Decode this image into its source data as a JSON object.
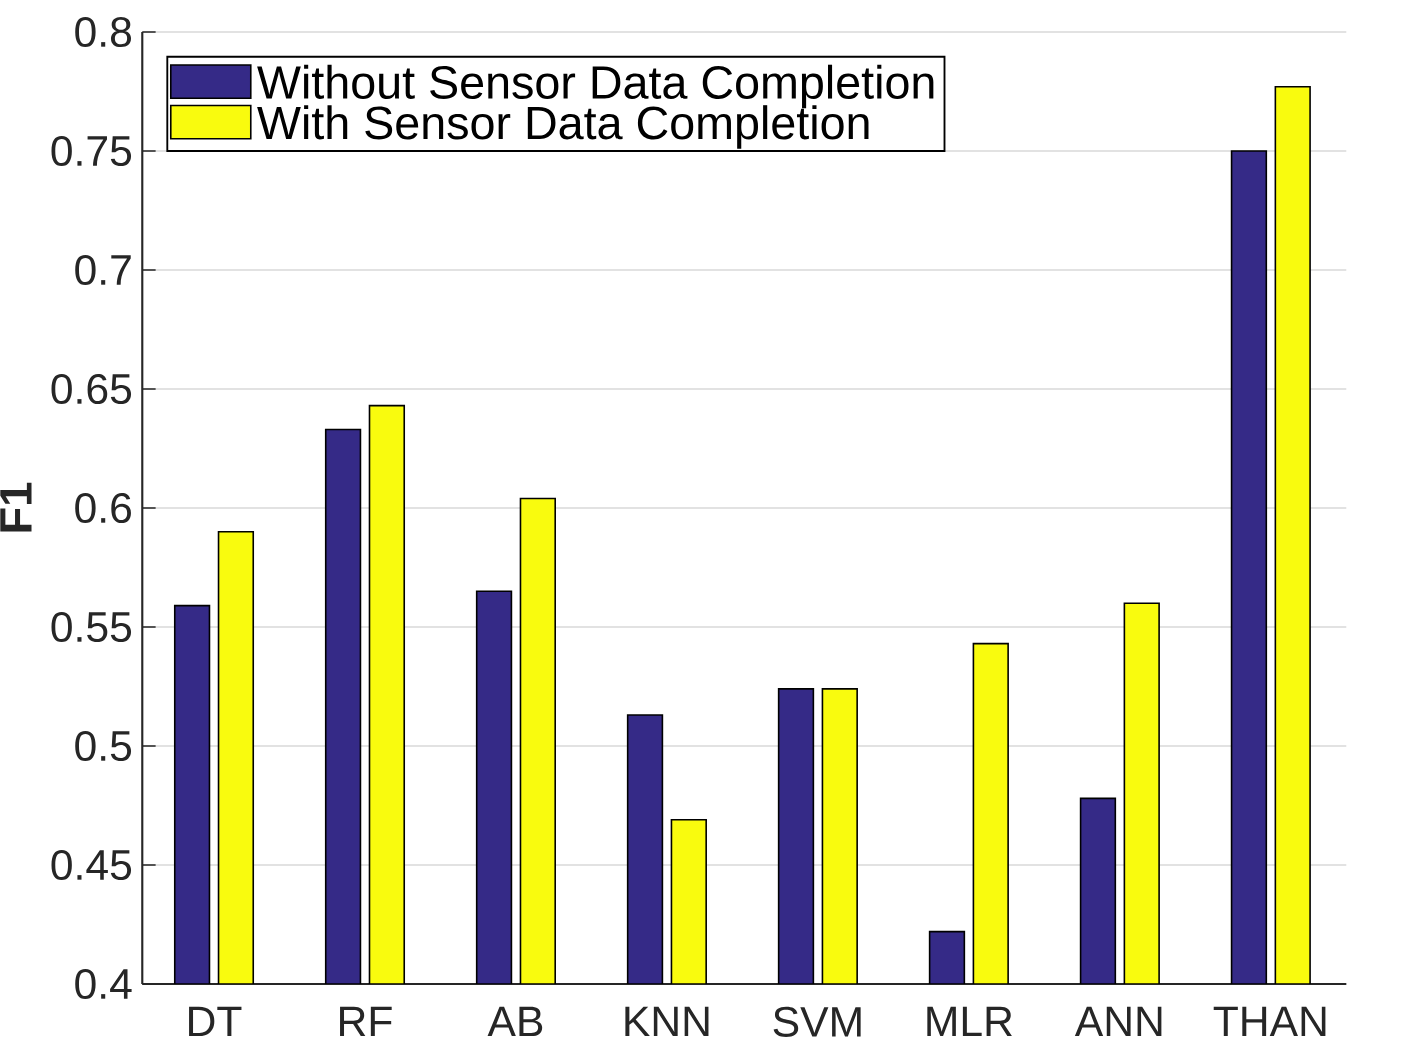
{
  "chart_data": {
    "type": "bar",
    "ylabel": "F1",
    "categories": [
      "DT",
      "RF",
      "AB",
      "KNN",
      "SVM",
      "MLR",
      "ANN",
      "THAN"
    ],
    "series": [
      {
        "name": "Without Sensor Data Completion",
        "color": "#352a87",
        "values": [
          0.559,
          0.633,
          0.565,
          0.513,
          0.524,
          0.422,
          0.478,
          0.75
        ]
      },
      {
        "name": "With Sensor Data Completion",
        "color": "#f9fb0e",
        "values": [
          0.59,
          0.643,
          0.604,
          0.469,
          0.524,
          0.543,
          0.56,
          0.777
        ]
      }
    ],
    "ylim": [
      0.4,
      0.8
    ],
    "yticks": [
      0.4,
      0.45,
      0.5,
      0.55,
      0.6,
      0.65,
      0.7,
      0.75,
      0.8
    ],
    "grid": "y",
    "legend": "top left"
  }
}
